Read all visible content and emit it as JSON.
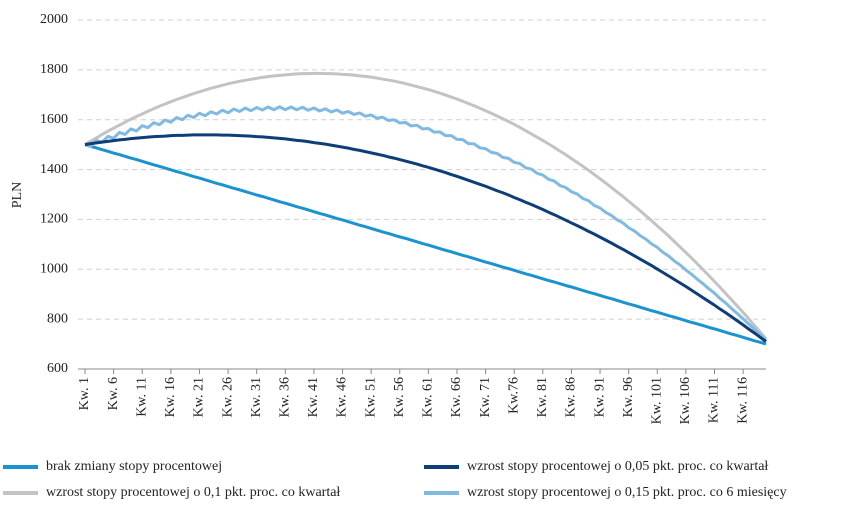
{
  "chart_data": {
    "type": "line",
    "y_label": "PLN",
    "ylim": [
      600,
      2000
    ],
    "yticks": [
      600,
      800,
      1000,
      1200,
      1400,
      1600,
      1800,
      2000
    ],
    "grid": true,
    "legend": "bottom",
    "categories": [
      "Kw. 1",
      null,
      null,
      null,
      null,
      "Kw. 6",
      null,
      null,
      null,
      null,
      "Kw. 11",
      null,
      null,
      null,
      null,
      "Kw. 16",
      null,
      null,
      null,
      null,
      "Kw. 21",
      null,
      null,
      null,
      null,
      "Kw. 26",
      null,
      null,
      null,
      null,
      "Kw. 31",
      null,
      null,
      null,
      null,
      "Kw. 36",
      null,
      null,
      null,
      null,
      "Kw. 41",
      null,
      null,
      null,
      null,
      "Kw. 46",
      null,
      null,
      null,
      null,
      "Kw. 51",
      null,
      null,
      null,
      null,
      "Kw. 56",
      null,
      null,
      null,
      null,
      "Kw. 61",
      null,
      null,
      null,
      null,
      "Kw. 66",
      null,
      null,
      null,
      null,
      "Kw. 71",
      null,
      null,
      null,
      null,
      "Kw.76",
      null,
      null,
      null,
      null,
      "Kw. 81",
      null,
      null,
      null,
      null,
      "Kw. 86",
      null,
      null,
      null,
      null,
      "Kw. 91",
      null,
      null,
      null,
      null,
      "Kw. 96",
      null,
      null,
      null,
      null,
      "Kw. 101",
      null,
      null,
      null,
      null,
      "Kw. 106",
      null,
      null,
      null,
      null,
      "Kw. 111",
      null,
      null,
      null,
      null,
      "Kw. 116",
      null,
      null,
      null,
      null
    ],
    "series": [
      {
        "name": "brak zmiany stopy procentowej",
        "color": "#1b93d1",
        "values": [
          1500,
          1493,
          1487,
          1480,
          1473,
          1466,
          1460,
          1453,
          1446,
          1440,
          1433,
          1426,
          1419,
          1413,
          1406,
          1399,
          1392,
          1386,
          1379,
          1372,
          1366,
          1359,
          1352,
          1345,
          1339,
          1332,
          1325,
          1319,
          1312,
          1305,
          1298,
          1292,
          1285,
          1278,
          1271,
          1265,
          1258,
          1251,
          1245,
          1238,
          1231,
          1224,
          1218,
          1211,
          1204,
          1198,
          1191,
          1184,
          1177,
          1171,
          1164,
          1157,
          1150,
          1144,
          1137,
          1130,
          1124,
          1117,
          1110,
          1103,
          1097,
          1090,
          1083,
          1076,
          1070,
          1063,
          1056,
          1050,
          1043,
          1036,
          1029,
          1023,
          1016,
          1009,
          1003,
          996,
          989,
          982,
          976,
          969,
          962,
          955,
          949,
          942,
          935,
          929,
          922,
          915,
          908,
          902,
          895,
          888,
          882,
          875,
          868,
          861,
          855,
          848,
          841,
          834,
          828,
          821,
          814,
          808,
          801,
          794,
          787,
          781,
          774,
          767,
          761,
          754,
          747,
          740,
          734,
          727,
          720,
          713,
          707,
          700
        ]
      },
      {
        "name": "wzrost stopy procentowej o 0,05 pkt. proc. co kwartał",
        "color": "#0e3e78",
        "values": [
          1500,
          1504,
          1507,
          1510,
          1513,
          1516,
          1519,
          1521,
          1524,
          1526,
          1528,
          1530,
          1532,
          1533,
          1534,
          1536,
          1537,
          1537,
          1538,
          1539,
          1539,
          1539,
          1539,
          1539,
          1538,
          1538,
          1537,
          1536,
          1535,
          1534,
          1532,
          1531,
          1529,
          1527,
          1525,
          1523,
          1520,
          1517,
          1515,
          1512,
          1508,
          1505,
          1502,
          1498,
          1494,
          1490,
          1486,
          1481,
          1477,
          1472,
          1467,
          1462,
          1457,
          1451,
          1446,
          1440,
          1434,
          1428,
          1422,
          1415,
          1409,
          1402,
          1395,
          1388,
          1380,
          1373,
          1365,
          1357,
          1349,
          1341,
          1333,
          1324,
          1315,
          1307,
          1298,
          1288,
          1279,
          1269,
          1260,
          1250,
          1240,
          1229,
          1219,
          1208,
          1197,
          1186,
          1175,
          1164,
          1152,
          1141,
          1129,
          1117,
          1105,
          1092,
          1080,
          1067,
          1054,
          1041,
          1028,
          1015,
          1001,
          987,
          973,
          959,
          945,
          931,
          916,
          901,
          886,
          871,
          856,
          840,
          825,
          809,
          793,
          777,
          760,
          744,
          727,
          710
        ]
      },
      {
        "name": "wzrost stopy procentowej o 0,1 pkt. proc. co kwartał",
        "color": "#c3c3c3",
        "values": [
          1500,
          1514,
          1527,
          1541,
          1554,
          1566,
          1578,
          1590,
          1602,
          1613,
          1623,
          1634,
          1644,
          1654,
          1663,
          1672,
          1681,
          1689,
          1697,
          1705,
          1712,
          1719,
          1726,
          1732,
          1738,
          1744,
          1749,
          1754,
          1758,
          1762,
          1766,
          1770,
          1773,
          1776,
          1778,
          1780,
          1782,
          1784,
          1785,
          1785,
          1786,
          1786,
          1785,
          1785,
          1784,
          1782,
          1781,
          1779,
          1776,
          1774,
          1771,
          1767,
          1763,
          1759,
          1755,
          1750,
          1745,
          1739,
          1733,
          1727,
          1721,
          1714,
          1707,
          1699,
          1691,
          1683,
          1674,
          1665,
          1656,
          1646,
          1636,
          1626,
          1615,
          1604,
          1593,
          1581,
          1569,
          1556,
          1543,
          1530,
          1517,
          1503,
          1489,
          1474,
          1460,
          1444,
          1429,
          1413,
          1397,
          1380,
          1363,
          1346,
          1328,
          1310,
          1292,
          1273,
          1254,
          1235,
          1215,
          1195,
          1174,
          1154,
          1133,
          1111,
          1089,
          1067,
          1045,
          1022,
          999,
          975,
          951,
          927,
          902,
          877,
          852,
          827,
          801,
          774,
          748,
          721
        ]
      },
      {
        "name": "wzrost stopy procentowej o 0,15 pkt. proc. co 6 miesięcy",
        "color": "#80b9e1",
        "values": [
          1500,
          1493,
          1517,
          1510,
          1533,
          1526,
          1549,
          1541,
          1563,
          1555,
          1576,
          1568,
          1588,
          1580,
          1599,
          1590,
          1609,
          1600,
          1618,
          1609,
          1626,
          1616,
          1632,
          1623,
          1638,
          1628,
          1643,
          1633,
          1647,
          1636,
          1649,
          1639,
          1651,
          1640,
          1652,
          1640,
          1651,
          1640,
          1650,
          1638,
          1647,
          1635,
          1644,
          1631,
          1639,
          1626,
          1633,
          1621,
          1627,
          1614,
          1619,
          1606,
          1610,
          1597,
          1600,
          1587,
          1589,
          1575,
          1578,
          1563,
          1565,
          1550,
          1551,
          1536,
          1536,
          1521,
          1520,
          1504,
          1503,
          1487,
          1484,
          1469,
          1465,
          1449,
          1445,
          1429,
          1424,
          1407,
          1402,
          1385,
          1378,
          1361,
          1354,
          1336,
          1328,
          1311,
          1302,
          1284,
          1275,
          1256,
          1246,
          1228,
          1216,
          1198,
          1186,
          1167,
          1154,
          1135,
          1121,
          1102,
          1088,
          1068,
          1053,
          1033,
          1017,
          997,
          980,
          960,
          942,
          922,
          904,
          882,
          864,
          842,
          822,
          801,
          780,
          759,
          737,
          715
        ]
      }
    ]
  }
}
